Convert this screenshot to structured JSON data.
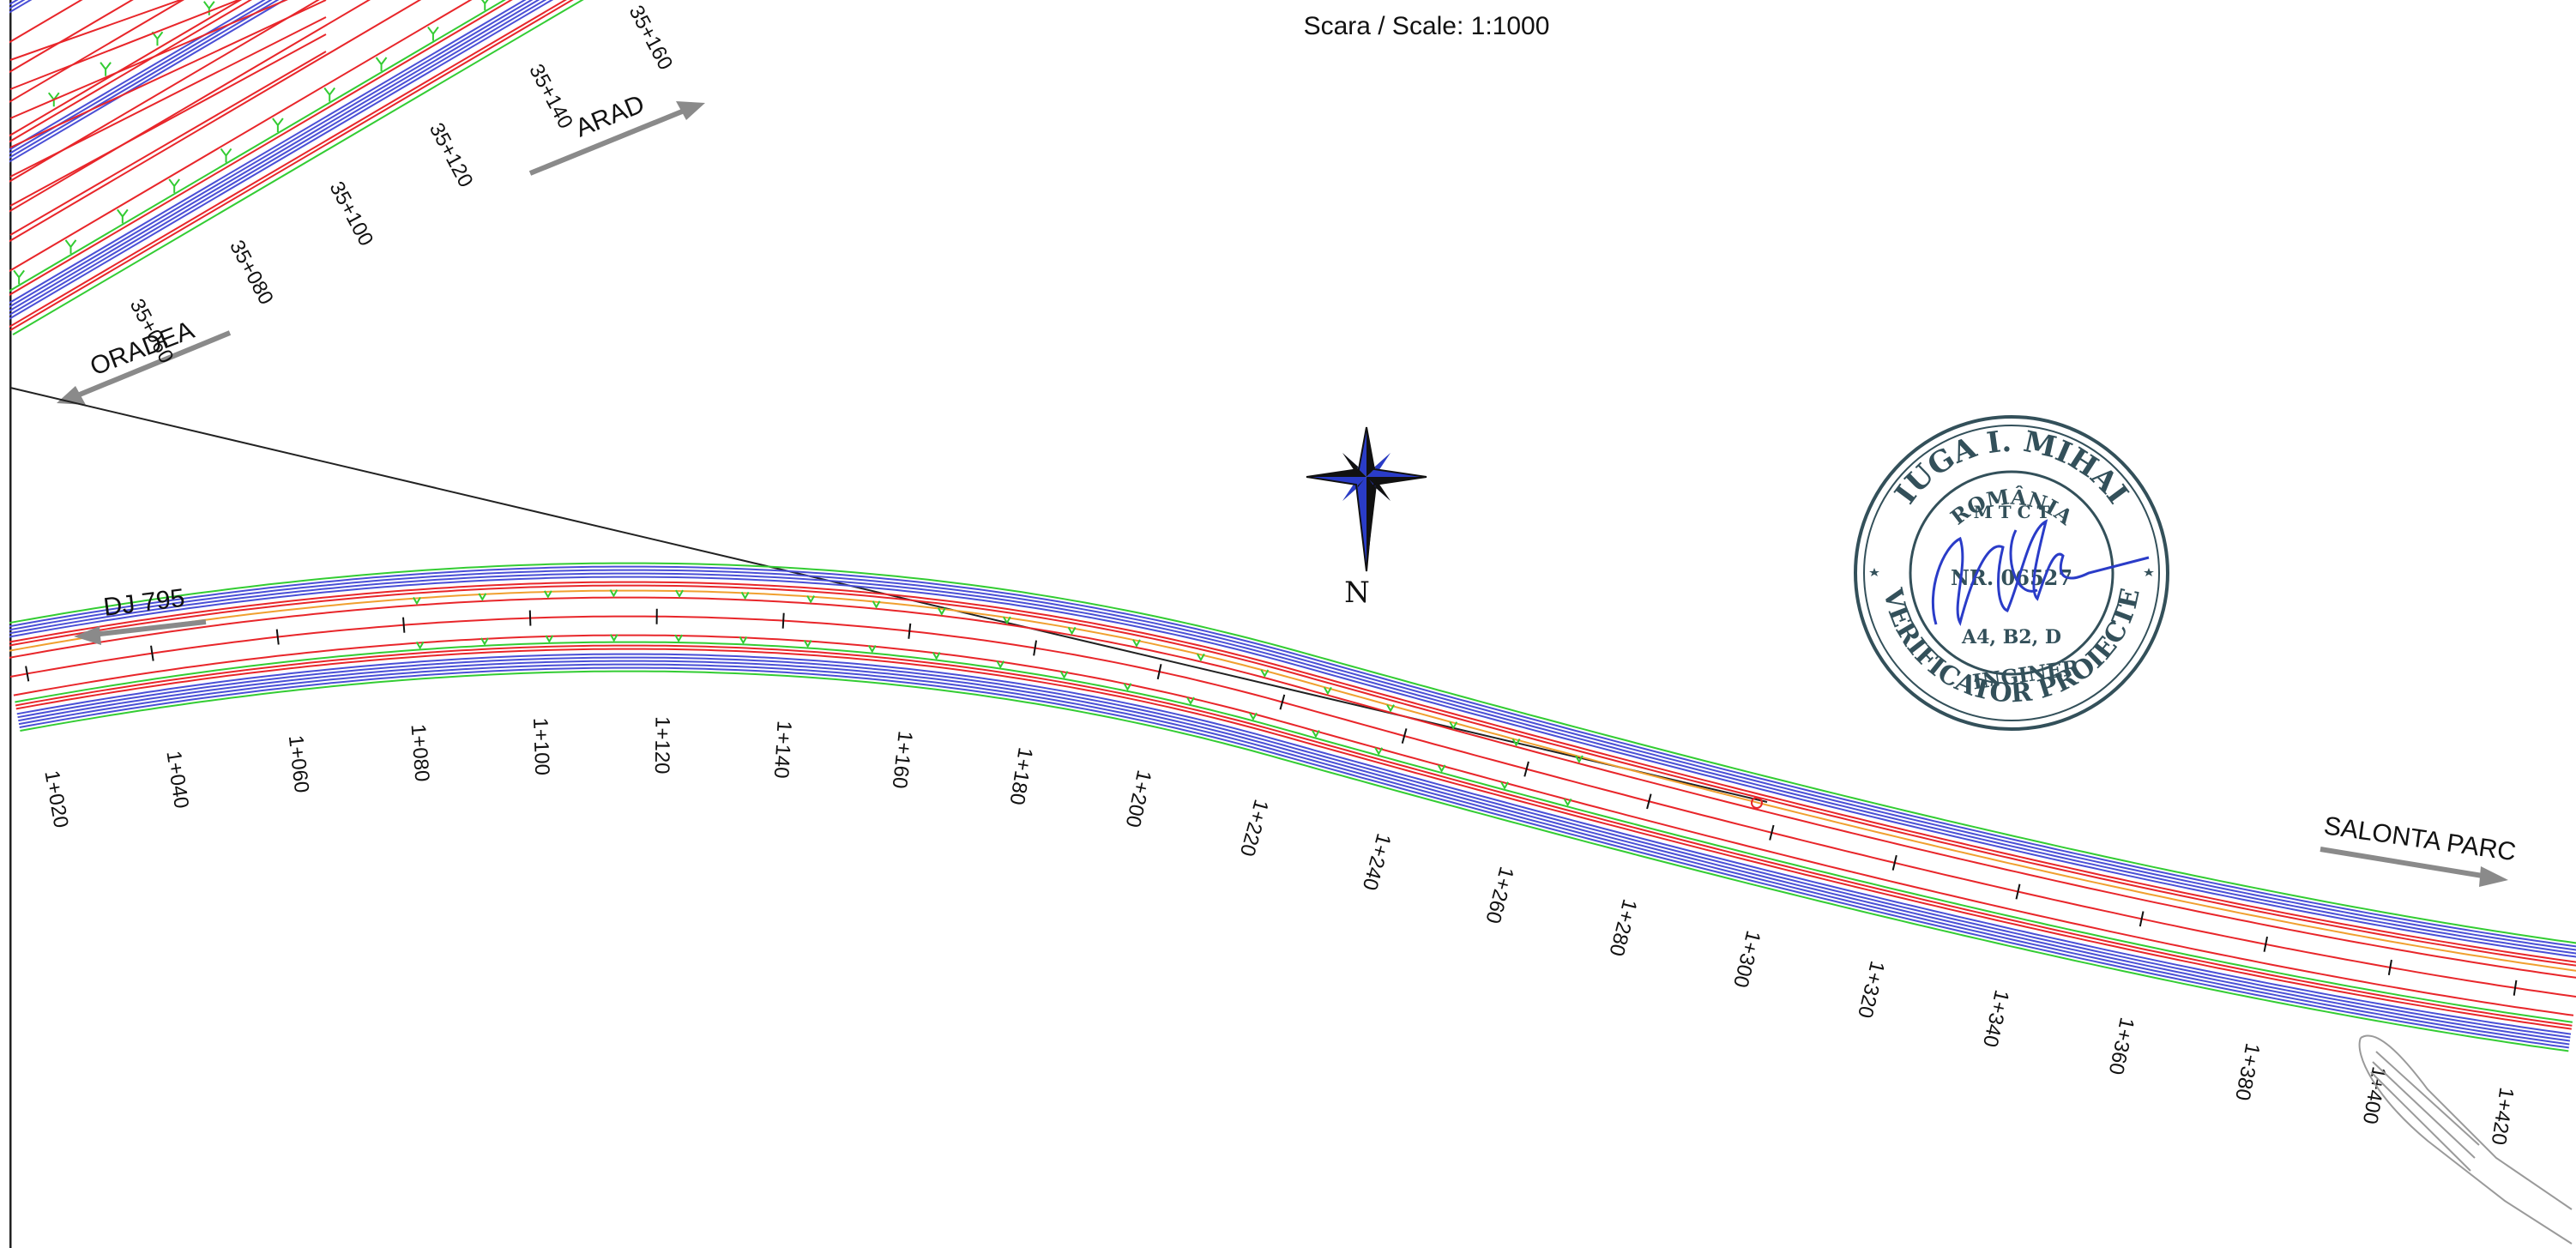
{
  "scale": {
    "text": "Scara / Scale: 1:1000"
  },
  "directions": {
    "arad": "ARAD",
    "oradea": "ORADEA",
    "dj795": "DJ 795",
    "salonta_parc": "SALONTA PARC"
  },
  "north": {
    "label": "N",
    "icon": "compass-rose-icon"
  },
  "upper_road": {
    "chainages": [
      "35+060",
      "35+080",
      "35+100",
      "35+120",
      "35+140",
      "35+160"
    ]
  },
  "main_road": {
    "chainages": [
      "1+020",
      "1+040",
      "1+060",
      "1+080",
      "1+100",
      "1+120",
      "1+140",
      "1+160",
      "1+180",
      "1+200",
      "1+220",
      "1+240",
      "1+260",
      "1+280",
      "1+300",
      "1+320",
      "1+340",
      "1+360",
      "1+380",
      "1+400",
      "1+420"
    ]
  },
  "stamp": {
    "top": "IUGA I. MIHAI",
    "line1": "ROMÂNIA",
    "line2": "M T C T",
    "number": "NR. 06527",
    "grade": "A4, B2, D",
    "title": "INGINER",
    "bottom": "VERIFICATOR PROIECTE"
  },
  "colors": {
    "red_lines": "#e8262a",
    "blue_lines": "#4a4fd6",
    "green_lines": "#33cc33",
    "stamp_ink": "#33505a",
    "signature_ink": "#2a3cc8",
    "arrow_grey": "#8a8a8a"
  }
}
